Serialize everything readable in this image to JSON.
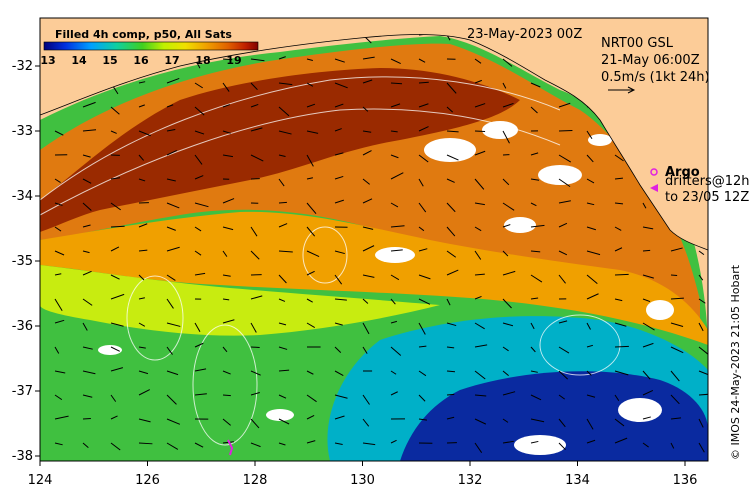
{
  "colorbar": {
    "title": "Filled 4h comp, p50, All Sats",
    "ticks": [
      "13",
      "14",
      "15",
      "16",
      "17",
      "18",
      "19"
    ],
    "colors": [
      "#00007a",
      "#0028d0",
      "#0078ff",
      "#00c0e0",
      "#10d080",
      "#50d020",
      "#b0f000",
      "#f0e000",
      "#f0a000",
      "#e06000",
      "#c03000",
      "#800000"
    ]
  },
  "header": {
    "date": "23-May-2023 00Z",
    "source_line1": "NRT00 GSL",
    "source_line2": "21-May 06:00Z",
    "scale_label": "0.5m/s (1kt 24h)"
  },
  "legend": {
    "argo_label": "Argo",
    "drifters_line1": "drifters@12h",
    "drifters_line2": "to 23/05 12Z",
    "argo_color": "#e020e0"
  },
  "axes": {
    "x_ticks": [
      "124",
      "126",
      "128",
      "130",
      "132",
      "134",
      "136"
    ],
    "y_ticks": [
      "-32",
      "-33",
      "-34",
      "-35",
      "-36",
      "-37",
      "-38"
    ]
  },
  "credit": "© IMOS 24-May-2023 21:05 Hobart",
  "colors": {
    "land": "#fccc98",
    "hot": "#9a2a00",
    "warm": "#dd6a00",
    "mid": "#f0a000",
    "yellow": "#e8e000",
    "green": "#40c040",
    "cool": "#00b0d0",
    "cold": "#001a90"
  }
}
